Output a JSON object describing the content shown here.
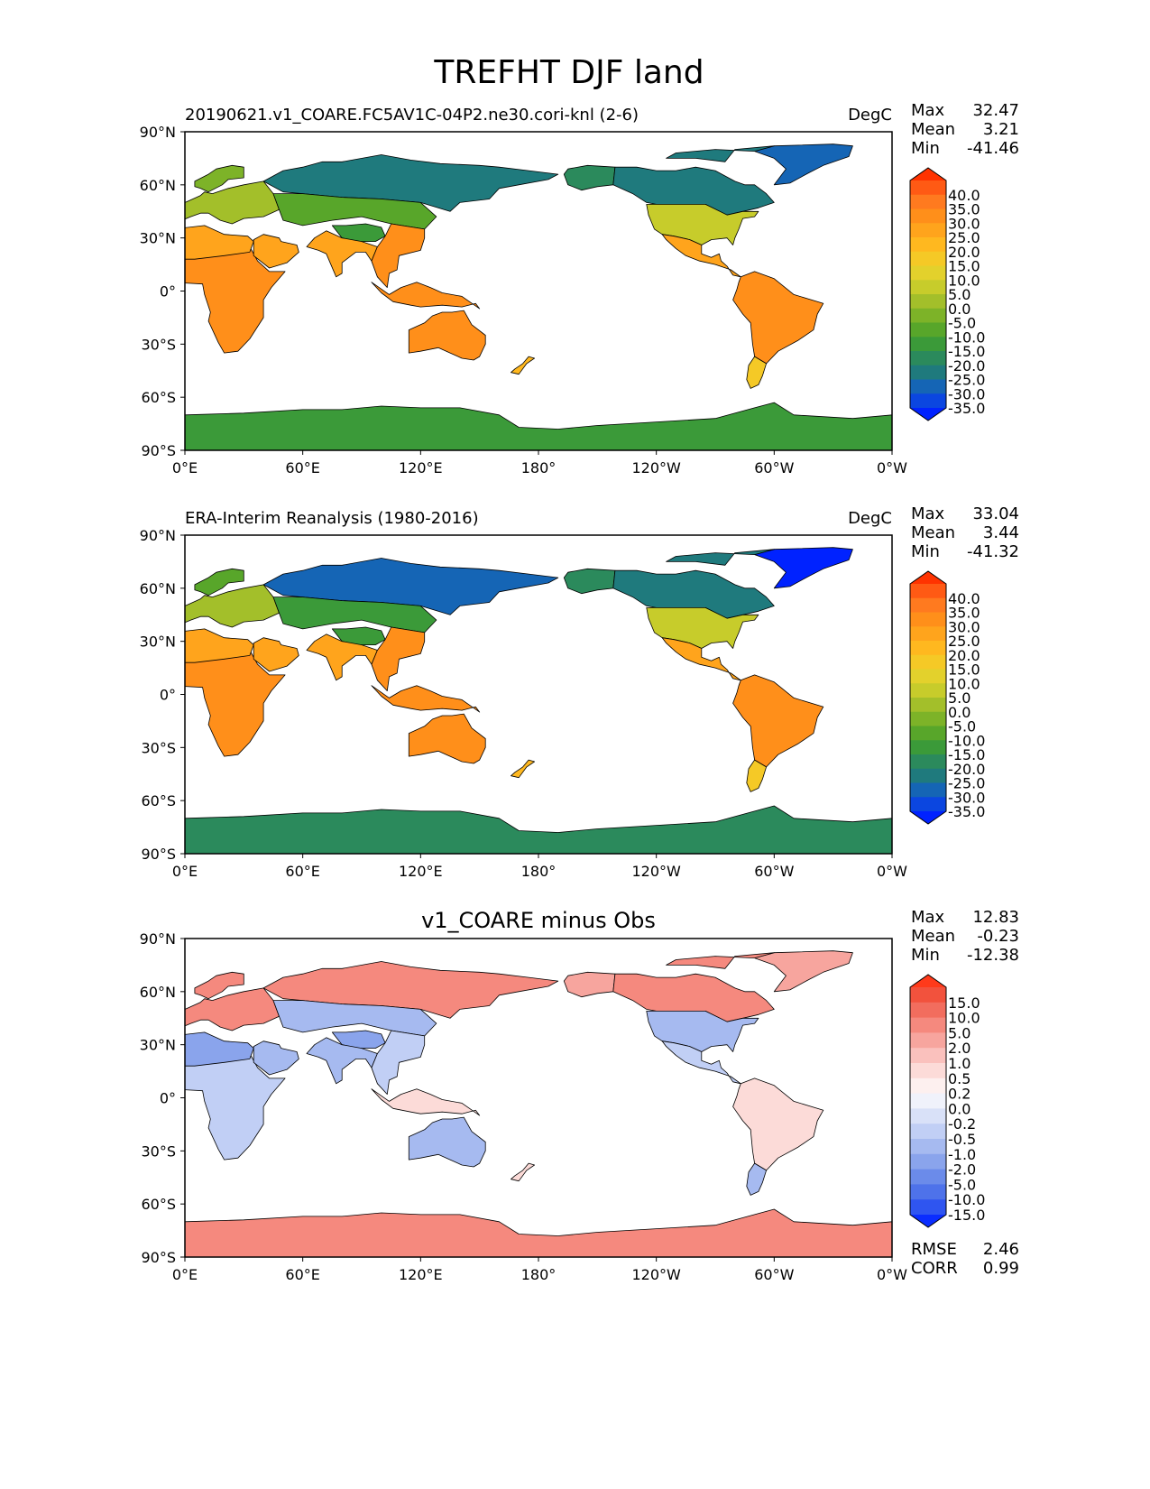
{
  "figure_title": "TREFHT DJF land",
  "colors": {
    "land_fallback": "#c9b98a",
    "ocean": "#ffffff",
    "coast": "#000000"
  },
  "chart_data": [
    {
      "type": "heatmap",
      "panel": "test",
      "title_left": "20190621.v1_COARE.FC5AV1C-04P2.ne30.cori-knl (2-6)",
      "title_center": "",
      "units": "DegC",
      "stats": [
        {
          "label": "Max",
          "value": "32.47"
        },
        {
          "label": "Mean",
          "value": "3.21"
        },
        {
          "label": "Min",
          "value": "-41.46"
        }
      ],
      "extra_stats": [],
      "x_ticks": [
        "0°E",
        "60°E",
        "120°E",
        "180°",
        "120°W",
        "60°W",
        "0°W"
      ],
      "y_ticks": [
        "90°N",
        "60°N",
        "30°N",
        "0°",
        "30°S",
        "60°S",
        "90°S"
      ],
      "xlim": [
        0,
        360
      ],
      "ylim": [
        -90,
        90
      ],
      "colorbar": {
        "levels": [
          "40.0",
          "35.0",
          "30.0",
          "25.0",
          "20.0",
          "15.0",
          "10.0",
          "5.0",
          "0.0",
          "-5.0",
          "-10.0",
          "-15.0",
          "-20.0",
          "-25.0",
          "-30.0",
          "-35.0"
        ],
        "colors": [
          "#ff3300",
          "#ff5a14",
          "#ff7a1f",
          "#ff8f1a",
          "#ffa41c",
          "#ffb81f",
          "#f5c926",
          "#e3d12c",
          "#c7cc2b",
          "#a3bf2a",
          "#7db328",
          "#58a62a",
          "#3b9a39",
          "#2b8a5c",
          "#1f7a7d",
          "#1565b5",
          "#0b46e0",
          "#0022ff"
        ]
      },
      "region_values": {
        "africa": 26,
        "sahara": 22,
        "europe": -3,
        "scandinavia": -10,
        "siberia": -28,
        "central_asia": -15,
        "tibet": -20,
        "india": 24,
        "se_asia": 26,
        "arabia": 20,
        "australia": 28,
        "nz": 16,
        "alaska": -22,
        "canada": -28,
        "usa": 2,
        "mexico": 22,
        "s_america": 26,
        "patagonia": 10,
        "greenland": -35,
        "antarctica": -20,
        "indonesia": 27
      }
    },
    {
      "type": "heatmap",
      "panel": "reference",
      "title_left": "ERA-Interim Reanalysis (1980-2016)",
      "title_center": "",
      "units": "DegC",
      "stats": [
        {
          "label": "Max",
          "value": "33.04"
        },
        {
          "label": "Mean",
          "value": "3.44"
        },
        {
          "label": "Min",
          "value": "-41.32"
        }
      ],
      "extra_stats": [],
      "x_ticks": [
        "0°E",
        "60°E",
        "120°E",
        "180°",
        "120°W",
        "60°W",
        "0°W"
      ],
      "y_ticks": [
        "90°N",
        "60°N",
        "30°N",
        "0°",
        "30°S",
        "60°S",
        "90°S"
      ],
      "xlim": [
        0,
        360
      ],
      "ylim": [
        -90,
        90
      ],
      "colorbar": {
        "levels": [
          "40.0",
          "35.0",
          "30.0",
          "25.0",
          "20.0",
          "15.0",
          "10.0",
          "5.0",
          "0.0",
          "-5.0",
          "-10.0",
          "-15.0",
          "-20.0",
          "-25.0",
          "-30.0",
          "-35.0"
        ],
        "colors": [
          "#ff3300",
          "#ff5a14",
          "#ff7a1f",
          "#ff8f1a",
          "#ffa41c",
          "#ffb81f",
          "#f5c926",
          "#e3d12c",
          "#c7cc2b",
          "#a3bf2a",
          "#7db328",
          "#58a62a",
          "#3b9a39",
          "#2b8a5c",
          "#1f7a7d",
          "#1565b5",
          "#0b46e0",
          "#0022ff"
        ]
      },
      "region_values": {
        "africa": 27,
        "sahara": 22,
        "europe": -5,
        "scandinavia": -12,
        "siberia": -32,
        "central_asia": -16,
        "tibet": -18,
        "india": 24,
        "se_asia": 26,
        "arabia": 21,
        "australia": 28,
        "nz": 16,
        "alaska": -24,
        "canada": -30,
        "usa": 0,
        "mexico": 22,
        "s_america": 26,
        "patagonia": 10,
        "greenland": -36,
        "antarctica": -22,
        "indonesia": 27
      }
    },
    {
      "type": "heatmap",
      "panel": "difference",
      "title_left": "",
      "title_center": "v1_COARE minus Obs",
      "units": "",
      "stats": [
        {
          "label": "Max",
          "value": "12.83"
        },
        {
          "label": "Mean",
          "value": "-0.23"
        },
        {
          "label": "Min",
          "value": "-12.38"
        }
      ],
      "extra_stats": [
        {
          "label": "RMSE",
          "value": "2.46"
        },
        {
          "label": "CORR",
          "value": "0.99"
        }
      ],
      "x_ticks": [
        "0°E",
        "60°E",
        "120°E",
        "180°",
        "120°W",
        "60°W",
        "0°W"
      ],
      "y_ticks": [
        "90°N",
        "60°N",
        "30°N",
        "0°",
        "30°S",
        "60°S",
        "90°S"
      ],
      "xlim": [
        0,
        360
      ],
      "ylim": [
        -90,
        90
      ],
      "colorbar": {
        "levels": [
          "15.0",
          "10.0",
          "5.0",
          "2.0",
          "1.0",
          "0.5",
          "0.2",
          "0.0",
          "-0.2",
          "-0.5",
          "-1.0",
          "-2.0",
          "-5.0",
          "-10.0",
          "-15.0"
        ],
        "colors": [
          "#ff3a1a",
          "#f2523d",
          "#f26d5e",
          "#f5897e",
          "#f7a59e",
          "#fac1bd",
          "#fcdbd8",
          "#fdf0ef",
          "#f0f2fb",
          "#d9e1f8",
          "#c1cff5",
          "#a6baf0",
          "#8aa4ec",
          "#6b8bea",
          "#4e72ea",
          "#2f55f0",
          "#0a2dff"
        ]
      },
      "region_values": {
        "africa": -1,
        "sahara": -3,
        "europe": 4,
        "scandinavia": 3,
        "siberia": 4,
        "central_asia": -2,
        "tibet": -3,
        "india": -2,
        "se_asia": -1,
        "arabia": -2,
        "australia": -1.5,
        "nz": 0.3,
        "alaska": 1.5,
        "canada": 2,
        "usa": -1.5,
        "mexico": -0.6,
        "s_america": 0.4,
        "patagonia": -2,
        "greenland": 1.5,
        "antarctica": 3,
        "indonesia": 0.3
      }
    }
  ]
}
